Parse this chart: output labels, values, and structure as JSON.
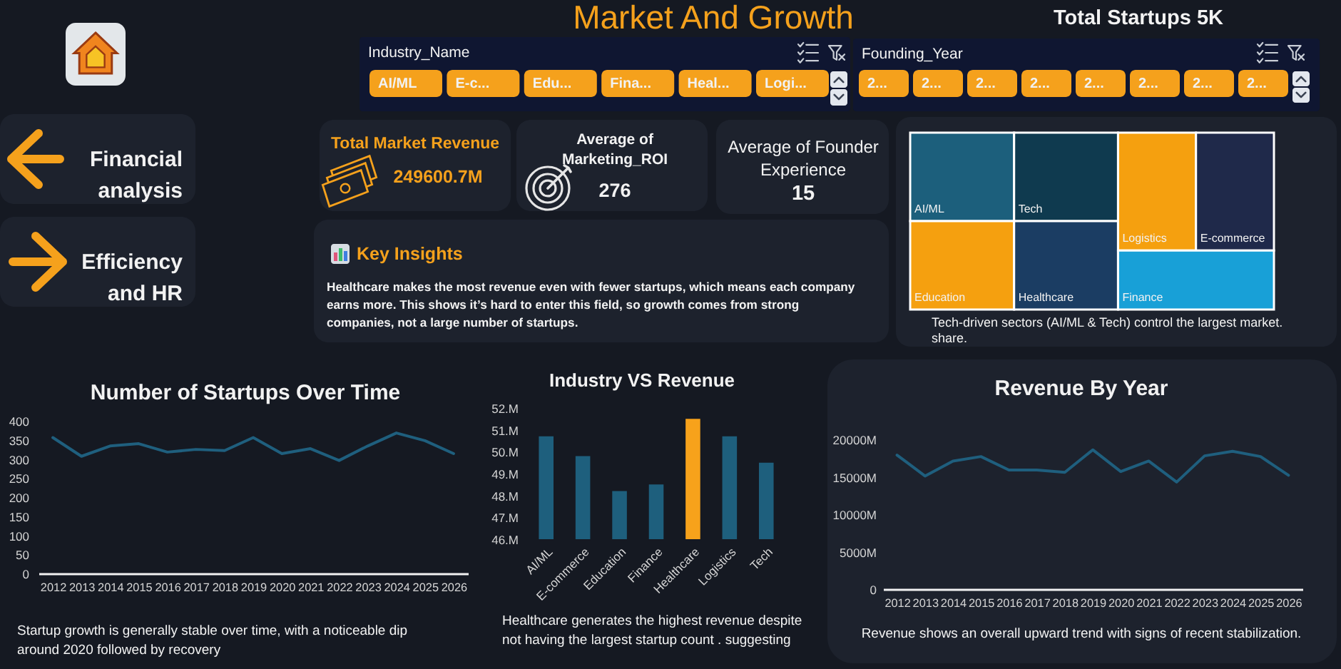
{
  "chart_data": [
    {
      "type": "other",
      "title": "Market And Growth",
      "color": "#f5a11c"
    },
    {
      "type": "other",
      "title": "Total Startups 5K"
    },
    {
      "type": "other",
      "title": "Industry_Name",
      "color": "#f5a11c",
      "categories": [
        "AI/ML",
        "E-c...",
        "Edu...",
        "Fina...",
        "Heal...",
        "Logi..."
      ]
    },
    {
      "type": "other",
      "title": "Founding_Year",
      "color": "#f5a11c",
      "categories": [
        "2...",
        "2...",
        "2...",
        "2...",
        "2...",
        "2...",
        "2...",
        "2..."
      ]
    },
    {
      "type": "other",
      "color": "#f5a11c",
      "annotations": [
        "Financial analysis",
        "Efficiency and HR"
      ]
    },
    {
      "type": "other",
      "title": "Total Market Revenue",
      "color": "#f5a11c",
      "annotations": [
        "249600.7M"
      ]
    },
    {
      "type": "other",
      "title": "Average of Marketing_ROI",
      "annotations": [
        "276"
      ]
    },
    {
      "type": "other",
      "title": "Average of Founder Experience",
      "annotations": [
        "15"
      ]
    },
    {
      "type": "other",
      "title": "Key Insights",
      "color": "#f5a11c",
      "annotations": [
        "Healthcare makes the most revenue even with fewer startups, which means each company earns more. This shows it’s hard to enter this field, so growth comes from strong companies, not a large number of startups."
      ]
    },
    {
      "type": "other",
      "categories": [
        "AI/ML",
        "Education",
        "Tech",
        "Healthcare",
        "Logistics",
        "E-commerce",
        "Finance"
      ],
      "colors": [
        "#1c5f7c",
        "#f5a00f",
        "#0f3a4f",
        "#1b3d63",
        "#f5a00f",
        "#1f294a",
        "#18a0d7"
      ],
      "annotations": [
        "Tech-driven sectors (AI/ML & Tech) control the largest market. share."
      ]
    },
    {
      "type": "line",
      "title": "Number of Startups Over Time",
      "categories": [
        "2012",
        "2013",
        "2014",
        "2015",
        "2016",
        "2017",
        "2018",
        "2019",
        "2020",
        "2021",
        "2022",
        "2023",
        "2024",
        "2025",
        "2026"
      ],
      "series": [
        {
          "color": "#1f5f7e",
          "values": [
            356,
            307,
            334,
            340,
            318,
            325,
            322,
            356,
            314,
            327,
            296,
            334,
            368,
            348,
            314
          ]
        }
      ],
      "ylim": [
        0,
        400
      ],
      "yticks": [
        0,
        50,
        100,
        150,
        200,
        250,
        300,
        350,
        400
      ],
      "annotations": [
        "Startup growth is generally stable over time, with a noticeable dip around 2020 followed by recovery"
      ]
    },
    {
      "type": "bar",
      "title": "Industry VS Revenue",
      "categories": [
        "AI/ML",
        "E-commerce",
        "Education",
        "Finance",
        "Healthcare",
        "Logistics",
        "Tech"
      ],
      "values": [
        50.7,
        49.8,
        48.2,
        48.5,
        51.5,
        50.7,
        49.5
      ],
      "colors": [
        "#1e5f7d",
        "#1e5f7d",
        "#1e5f7d",
        "#1e5f7d",
        "#f7a21b",
        "#1e5f7d",
        "#1e5f7d"
      ],
      "ylim": [
        46,
        52
      ],
      "yticks": [
        {
          "value": 46,
          "label": "46.M"
        },
        {
          "value": 47,
          "label": "47.M"
        },
        {
          "value": 48,
          "label": "48.M"
        },
        {
          "value": 49,
          "label": "49.M"
        },
        {
          "value": 50,
          "label": "50.M"
        },
        {
          "value": 51,
          "label": "51.M"
        },
        {
          "value": 52,
          "label": "52.M"
        }
      ],
      "annotations": [
        "Healthcare generates the highest revenue despite not having the largest startup count . suggesting"
      ]
    },
    {
      "type": "line",
      "title": "Revenue By Year",
      "categories": [
        "2012",
        "2013",
        "2014",
        "2015",
        "2016",
        "2017",
        "2018",
        "2019",
        "2020",
        "2021",
        "2022",
        "2023",
        "2024",
        "2025",
        "2026"
      ],
      "series": [
        {
          "color": "#1f5f7e",
          "values": [
            17900,
            15100,
            17100,
            17700,
            15900,
            15900,
            15600,
            18600,
            15700,
            17100,
            14300,
            17800,
            18400,
            17700,
            15200
          ]
        }
      ],
      "ylim": [
        0,
        20000
      ],
      "yticks": [
        0,
        {
          "value": 5000,
          "label": "5000M"
        },
        {
          "value": 10000,
          "label": "10000M"
        },
        {
          "value": 15000,
          "label": "15000M"
        },
        {
          "value": 20000,
          "label": "20000M"
        }
      ],
      "annotations": [
        "Revenue shows an overall upward trend with signs of recent stabilization."
      ]
    }
  ]
}
